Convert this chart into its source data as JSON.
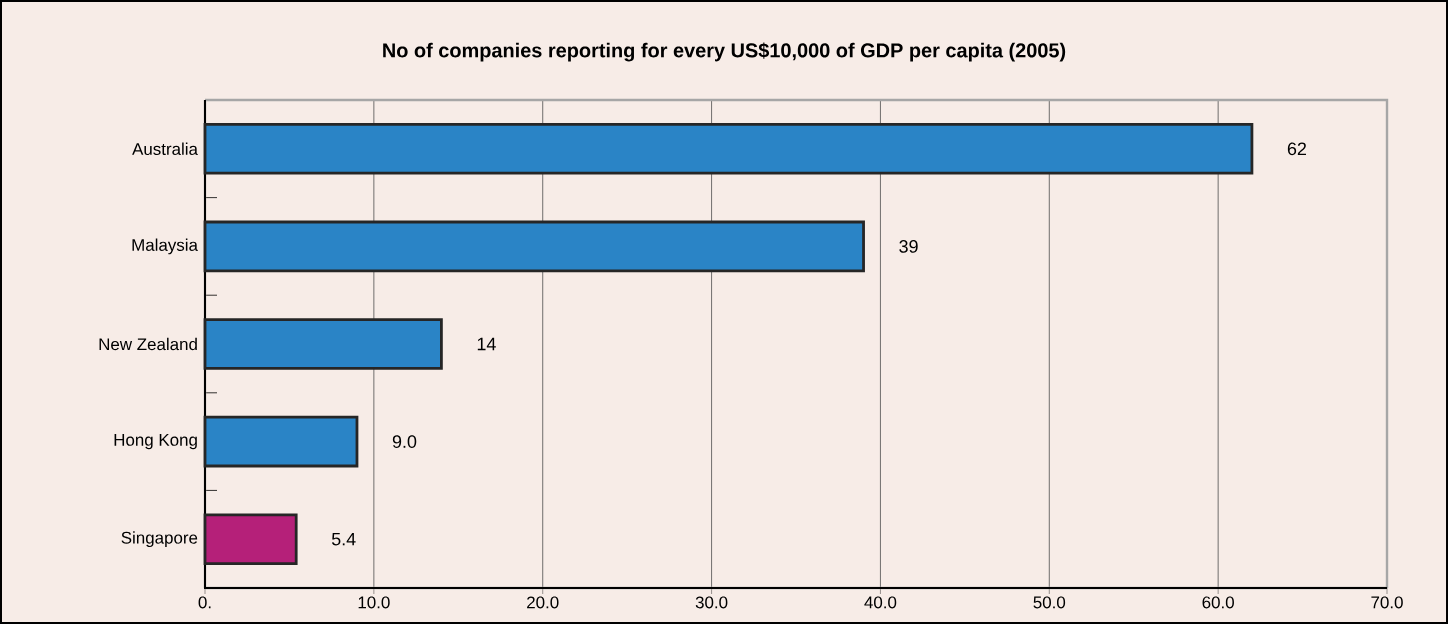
{
  "chart_data": {
    "type": "bar",
    "orientation": "horizontal",
    "title": "No of companies reporting for every US$10,000 of GDP per capita (2005)",
    "categories": [
      "Australia",
      "Malaysia",
      "New Zealand",
      "Hong Kong",
      "Singapore"
    ],
    "values": [
      62,
      39,
      14,
      9,
      5.4
    ],
    "value_labels": [
      "62",
      "39",
      "14",
      "9.0",
      "5.4"
    ],
    "colors": [
      "#2a84c6",
      "#2a84c6",
      "#2a84c6",
      "#2a84c6",
      "#b52079"
    ],
    "xlim": [
      0,
      70
    ],
    "xticks": [
      {
        "value": 0,
        "label": "0."
      },
      {
        "value": 10,
        "label": "10.0"
      },
      {
        "value": 20,
        "label": "20.0"
      },
      {
        "value": 30,
        "label": "30.0"
      },
      {
        "value": 40,
        "label": "40.0"
      },
      {
        "value": 50,
        "label": "50.0"
      },
      {
        "value": 60,
        "label": "60.0"
      },
      {
        "value": 70,
        "label": "70.0"
      }
    ],
    "grid": "x"
  }
}
